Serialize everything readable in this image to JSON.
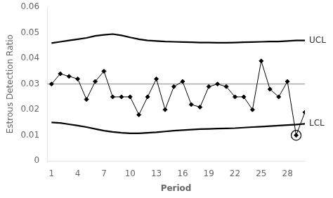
{
  "chart_data": {
    "type": "line",
    "xlabel": "Period",
    "ylabel": "Estrous Detection Ratio",
    "x": [
      1,
      2,
      3,
      4,
      5,
      6,
      7,
      8,
      9,
      10,
      11,
      12,
      13,
      14,
      15,
      16,
      17,
      18,
      19,
      20,
      21,
      22,
      23,
      24,
      25,
      26,
      27,
      28,
      29,
      30
    ],
    "series": [
      {
        "color": "#000000",
        "marker": "diamond",
        "line_style": "solid",
        "values": [
          0.03,
          0.034,
          0.033,
          0.032,
          0.024,
          0.031,
          0.035,
          0.025,
          0.025,
          0.025,
          0.018,
          0.025,
          0.032,
          0.02,
          0.029,
          0.031,
          0.022,
          0.021,
          0.029,
          0.03,
          0.029,
          0.025,
          0.025,
          0.02,
          0.039,
          0.028,
          0.025,
          0.031,
          0.01,
          0.019
        ]
      },
      {
        "color": "#000000",
        "marker": "none",
        "line_style": "solid",
        "values": [
          0.046,
          0.0465,
          0.047,
          0.0475,
          0.048,
          0.0488,
          0.0492,
          0.0495,
          0.049,
          0.0482,
          0.0475,
          0.047,
          0.0468,
          0.0466,
          0.0465,
          0.0464,
          0.0463,
          0.0462,
          0.0462,
          0.0461,
          0.0461,
          0.0462,
          0.0463,
          0.0464,
          0.0465,
          0.0466,
          0.0466,
          0.0468,
          0.047,
          0.047
        ]
      },
      {
        "color": "#000000",
        "marker": "none",
        "line_style": "solid",
        "values": [
          0.015,
          0.0148,
          0.0143,
          0.0138,
          0.0132,
          0.0125,
          0.0118,
          0.0113,
          0.011,
          0.0108,
          0.0108,
          0.011,
          0.0112,
          0.0115,
          0.0118,
          0.012,
          0.0122,
          0.0124,
          0.0125,
          0.0126,
          0.0127,
          0.0128,
          0.013,
          0.0132,
          0.0134,
          0.0136,
          0.0138,
          0.014,
          0.0142,
          0.0145
        ]
      }
    ],
    "center_line": {
      "value": 0.03,
      "color": "#888888"
    },
    "circled_point": {
      "x": 29,
      "y": 0.01
    },
    "annotations": [
      {
        "text": "UCL",
        "x": 30,
        "y": 0.047
      },
      {
        "text": "LCL",
        "x": 30,
        "y": 0.0145
      }
    ],
    "xlim": [
      0.5,
      30
    ],
    "ylim": [
      0,
      0.06
    ],
    "xticks": [
      1,
      4,
      7,
      10,
      13,
      16,
      19,
      22,
      25,
      28
    ],
    "yticks": [
      0,
      0.01,
      0.02,
      0.03,
      0.04,
      0.05,
      0.06
    ],
    "grid": false,
    "legend": false
  }
}
